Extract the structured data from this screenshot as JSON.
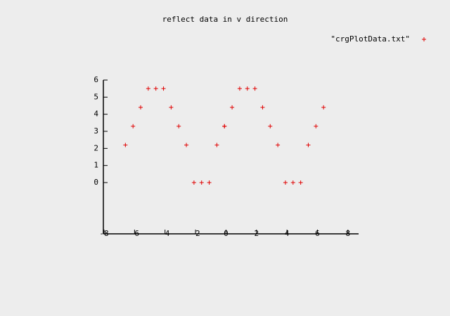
{
  "chart_data": {
    "type": "scatter",
    "title": "reflect data in v direction",
    "series": [
      {
        "name": "\"crgPlotData.txt\"",
        "color": "#e00000",
        "x": [
          -6.6,
          -6.1,
          -5.6,
          -5.1,
          -4.6,
          -4.1,
          -3.6,
          -3.1,
          -2.6,
          -2.1,
          -1.6,
          -1.1,
          -0.6,
          -0.1,
          -0.1,
          0.4,
          0.9,
          1.4,
          1.9,
          2.4,
          2.9,
          3.4,
          3.9,
          4.4,
          4.9,
          5.4,
          5.9,
          6.4
        ],
        "values": [
          2.2,
          3.3,
          4.4,
          5.5,
          5.5,
          5.5,
          4.4,
          3.3,
          2.2,
          0,
          0,
          0,
          2.2,
          3.3,
          3.3,
          4.4,
          5.5,
          5.5,
          5.5,
          4.4,
          3.3,
          2.2,
          0,
          0,
          0,
          2.2,
          3.3,
          4.4
        ]
      }
    ],
    "xlim": [
      -8,
      8.7
    ],
    "xticks": [
      -8,
      -6,
      -4,
      -2,
      0,
      2,
      4,
      6,
      8
    ],
    "ylim": [
      -3,
      6
    ],
    "yticks": [
      0,
      1,
      2,
      3,
      4,
      5,
      6
    ],
    "legend": "top-right",
    "grid": false
  }
}
